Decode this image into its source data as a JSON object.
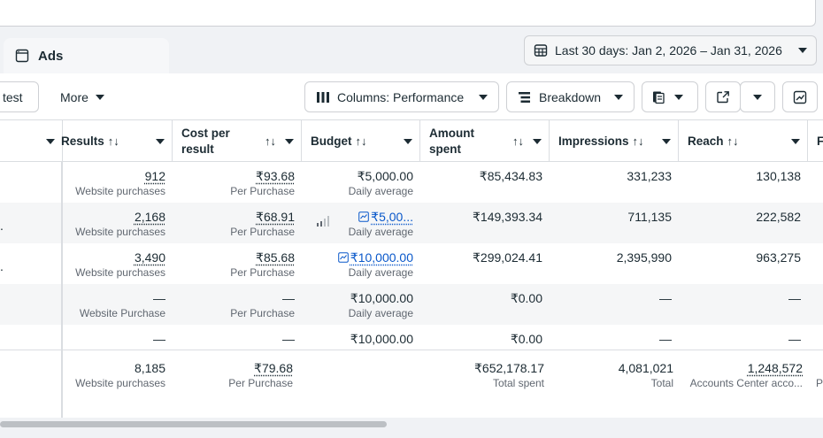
{
  "tab": {
    "label": "Ads"
  },
  "date_range": {
    "label": "Last 30 days: Jan 2, 2026 – Jan 31, 2026"
  },
  "toolbar": {
    "test_label": "test",
    "more_label": "More",
    "columns_label": "Columns: Performance",
    "breakdown_label": "Breakdown"
  },
  "headers": {
    "results": "Results",
    "cost_per_result": "Cost per result",
    "budget": "Budget",
    "amount_spent": "Amount spent",
    "impressions": "Impressions",
    "reach": "Reach",
    "next": "F"
  },
  "rows": [
    {
      "results": "912",
      "results_sub": "Website purchases",
      "cpr": "₹93.68",
      "cpr_sub": "Per Purchase",
      "budget": "₹5,000.00",
      "budget_sub": "Daily average",
      "spent": "₹85,434.83",
      "impressions": "331,233",
      "reach": "130,138"
    },
    {
      "results": "2,168",
      "results_sub": "Website purchases",
      "cpr": "₹68.91",
      "cpr_sub": "Per Purchase",
      "budget": "₹5,00...",
      "budget_sub": "Daily average",
      "spent": "₹149,393.34",
      "impressions": "711,135",
      "reach": "222,582"
    },
    {
      "results": "3,490",
      "results_sub": "Website purchases",
      "cpr": "₹85.68",
      "cpr_sub": "Per Purchase",
      "budget": "₹10,000.00",
      "budget_sub": "Daily average",
      "spent": "₹299,024.41",
      "impressions": "2,395,990",
      "reach": "963,275"
    },
    {
      "results": "—",
      "results_sub": "Website Purchase",
      "cpr": "—",
      "cpr_sub": "Per Purchase",
      "budget": "₹10,000.00",
      "budget_sub": "Daily average",
      "spent": "₹0.00",
      "impressions": "—",
      "reach": "—"
    },
    {
      "results": "—",
      "results_sub": "",
      "cpr": "—",
      "cpr_sub": "",
      "budget": "₹10,000.00",
      "budget_sub": "",
      "spent": "₹0.00",
      "impressions": "—",
      "reach": "—"
    }
  ],
  "totals": {
    "results": "8,185",
    "results_sub": "Website purchases",
    "cpr": "₹79.68",
    "cpr_sub": "Per Purchase",
    "spent": "₹652,178.17",
    "spent_sub": "Total spent",
    "impressions": "4,081,021",
    "impressions_sub": "Total",
    "reach": "1,248,572",
    "reach_sub": "Accounts Center acco...",
    "next_sub": "P"
  },
  "frozen_ellipsis": "."
}
